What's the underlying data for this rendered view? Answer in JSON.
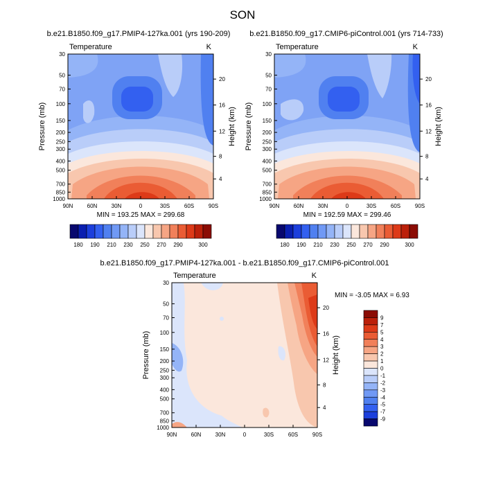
{
  "title": "SON",
  "panels": [
    {
      "id": "left",
      "case_title": "b.e21.B1850.f09_g17.PMIP4-127ka.001 (yrs 190-209)",
      "variable": "Temperature",
      "units": "K",
      "minmax": "MIN = 193.25  MAX = 299.68"
    },
    {
      "id": "right",
      "case_title": "b.e21.B1850.f09_g17.CMIP6-piControl.001 (yrs 714-733)",
      "variable": "Temperature",
      "units": "K",
      "minmax": "MIN = 192.59  MAX = 299.46"
    },
    {
      "id": "diff",
      "case_title": "b.e21.B1850.f09_g17.PMIP4-127ka.001 - b.e21.B1850.f09_g17.CMIP6-piControl.001",
      "variable": "Temperature",
      "units": "K",
      "minmax": "MIN =  -3.05  MAX =   6.93"
    }
  ],
  "axes": {
    "ylabel": "Pressure (mb)",
    "ylabel_right": "Height (km)",
    "pressure_ticks": [
      "30",
      "50",
      "70",
      "100",
      "150",
      "200",
      "250",
      "300",
      "400",
      "500",
      "700",
      "850",
      "1000"
    ],
    "height_ticks": [
      "20",
      "16",
      "12",
      "8",
      "4"
    ],
    "lat_ticks": [
      "90N",
      "60N",
      "30N",
      "0",
      "30S",
      "60S",
      "90S"
    ]
  },
  "colorbar_abs": {
    "labels": [
      "180",
      "190",
      "210",
      "230",
      "250",
      "270",
      "290",
      "300"
    ],
    "colors": [
      "#08086e",
      "#0a1fb0",
      "#1c3fdc",
      "#3360f0",
      "#5080f0",
      "#7099f5",
      "#94b4f7",
      "#b9cdf9",
      "#dbe5fb",
      "#fbe7dc",
      "#f8c7ae",
      "#f6a584",
      "#f1805a",
      "#ea5c34",
      "#dd3a18",
      "#bb200a",
      "#8b0c04"
    ]
  },
  "colorbar_diff": {
    "labels": [
      "9",
      "7",
      "5",
      "4",
      "3",
      "2",
      "1",
      "0",
      "-1",
      "-2",
      "-3",
      "-4",
      "-5",
      "-7",
      "-9"
    ],
    "colors": [
      "#8b0c04",
      "#bb200a",
      "#dd3a18",
      "#ea5c34",
      "#f1805a",
      "#f6a584",
      "#f8c7ae",
      "#fbe7dc",
      "#dbe5fb",
      "#b9cdf9",
      "#94b4f7",
      "#7099f5",
      "#5080f0",
      "#3360f0",
      "#1c3fdc",
      "#08086e"
    ]
  },
  "chart_data": [
    {
      "type": "heatmap",
      "title": "b.e21.B1850.f09_g17.PMIP4-127ka.001 (yrs 190-209)",
      "field": "Temperature",
      "units": "K",
      "x_range": [
        "90N",
        "90S"
      ],
      "y_range_mb": [
        30,
        1000
      ],
      "min": 193.25,
      "max": 299.68,
      "contour_levels": [
        180,
        190,
        200,
        210,
        220,
        230,
        240,
        250,
        260,
        270,
        280,
        290,
        300
      ]
    },
    {
      "type": "heatmap",
      "title": "b.e21.B1850.f09_g17.CMIP6-piControl.001 (yrs 714-733)",
      "field": "Temperature",
      "units": "K",
      "x_range": [
        "90N",
        "90S"
      ],
      "y_range_mb": [
        30,
        1000
      ],
      "min": 192.59,
      "max": 299.46,
      "contour_levels": [
        180,
        190,
        200,
        210,
        220,
        230,
        240,
        250,
        260,
        270,
        280,
        290,
        300
      ]
    },
    {
      "type": "heatmap",
      "title": "b.e21.B1850.f09_g17.PMIP4-127ka.001 - b.e21.B1850.f09_g17.CMIP6-piControl.001",
      "field": "Temperature",
      "units": "K",
      "x_range": [
        "90N",
        "90S"
      ],
      "y_range_mb": [
        30,
        1000
      ],
      "min": -3.05,
      "max": 6.93,
      "contour_levels": [
        -9,
        -7,
        -5,
        -4,
        -3,
        -2,
        -1,
        0,
        1,
        2,
        3,
        4,
        5,
        7,
        9
      ]
    }
  ]
}
